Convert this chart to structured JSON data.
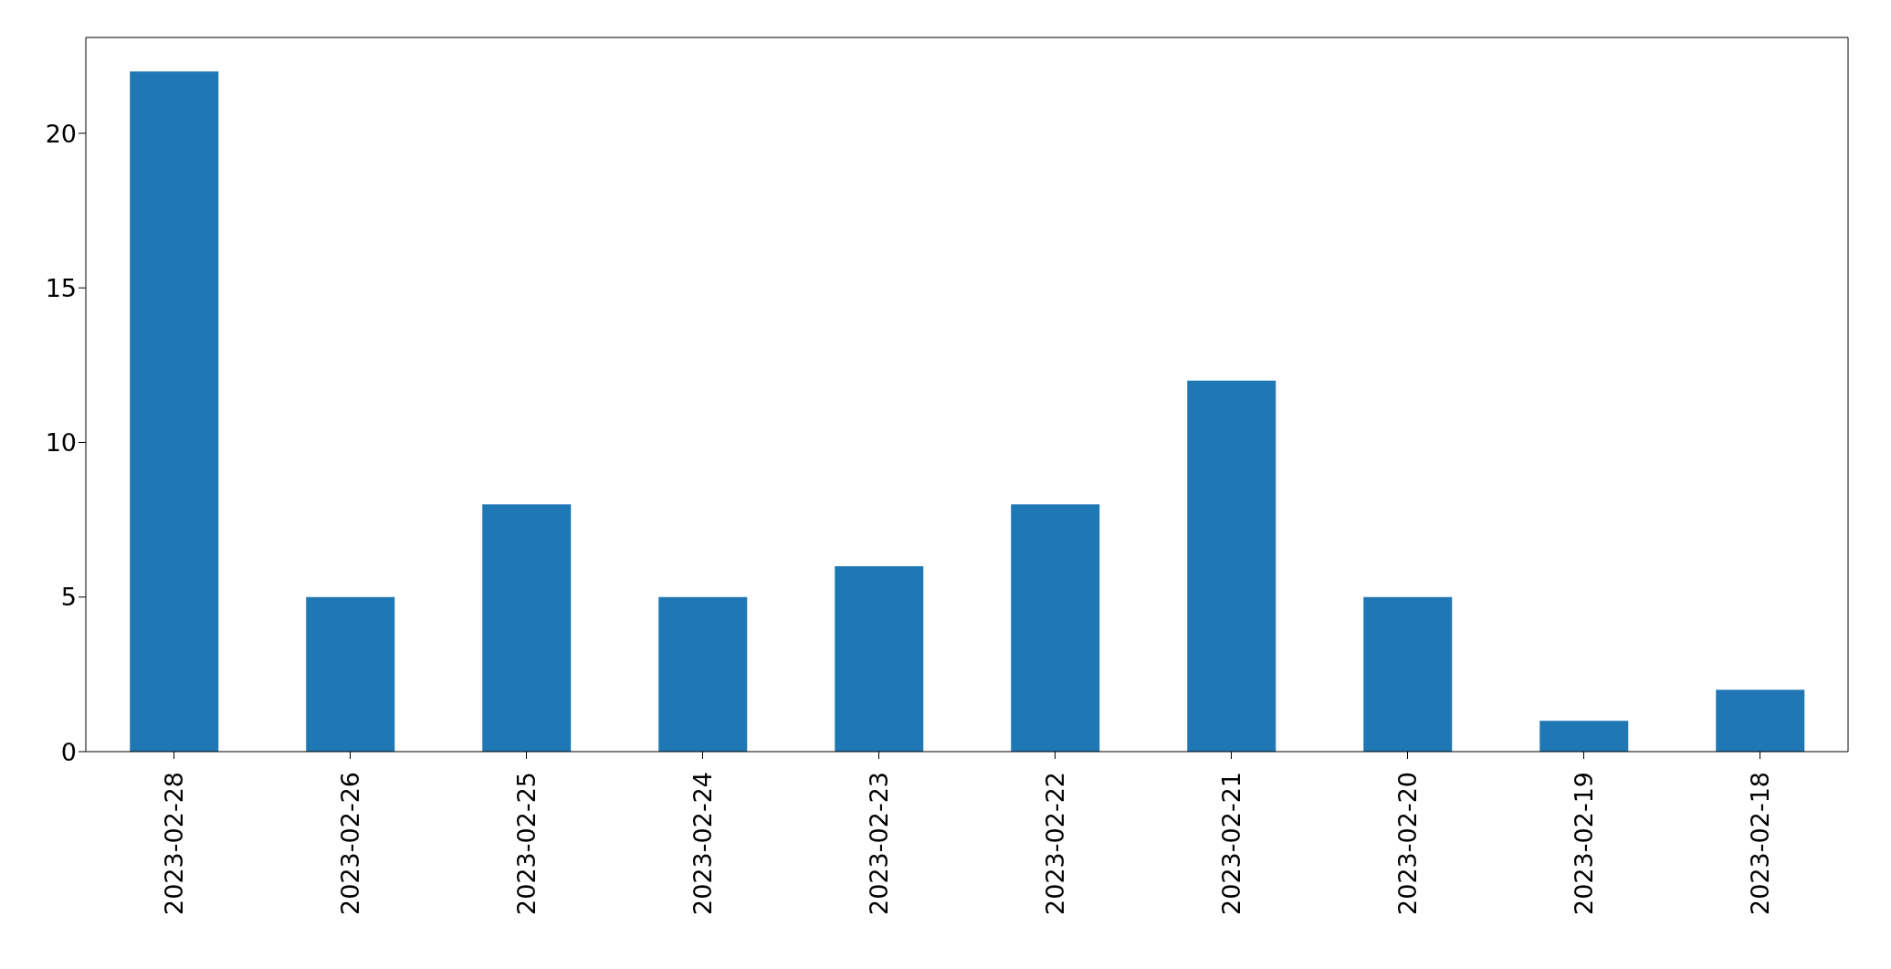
{
  "chart_data": {
    "type": "bar",
    "categories": [
      "2023-02-28",
      "2023-02-26",
      "2023-02-25",
      "2023-02-24",
      "2023-02-23",
      "2023-02-22",
      "2023-02-21",
      "2023-02-20",
      "2023-02-19",
      "2023-02-18"
    ],
    "values": [
      22,
      5,
      8,
      5,
      6,
      8,
      12,
      5,
      1,
      2
    ],
    "color": "#1f77b4",
    "ylim": [
      0,
      23.1
    ],
    "yticks": [
      0,
      5,
      10,
      15,
      20
    ],
    "grid": false,
    "legend": false
  }
}
